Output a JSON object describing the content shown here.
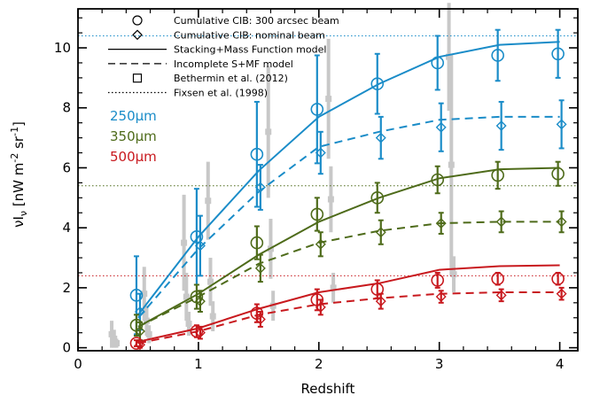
{
  "chart_data": {
    "type": "line",
    "title": "",
    "xlabel": "Redshift",
    "ylabel": "νI_ν [nW m^-2 sr^-1]",
    "xlim": [
      0,
      4.15
    ],
    "ylim": [
      -0.1,
      11.3
    ],
    "xticks": [
      0,
      1,
      2,
      3,
      4
    ],
    "yticks": [
      0,
      2,
      4,
      6,
      8,
      10
    ],
    "grid": false,
    "legend_position": "top-left",
    "legend": [
      {
        "label": "Cumulative CIB: 300 arcsec beam",
        "marker": "circle"
      },
      {
        "label": "Cumulative CIB: nominal beam",
        "marker": "diamond"
      },
      {
        "label": "Stacking+Mass Function model",
        "line": "solid"
      },
      {
        "label": "Incomplete S+MF model",
        "line": "dashed"
      },
      {
        "label": "Bethermin et al. (2012)",
        "marker": "square"
      },
      {
        "label": "Fixsen et al. (1998)",
        "line": "dotted"
      }
    ],
    "bands": [
      {
        "label": "250μm",
        "color": "#1a8cc8",
        "fixsen": 10.4,
        "model_x": [
          0.5,
          1.0,
          1.5,
          2.0,
          2.5,
          3.0,
          3.5,
          4.0
        ],
        "model_full": [
          1.1,
          3.7,
          5.9,
          7.7,
          8.8,
          9.7,
          10.1,
          10.2
        ],
        "model_incomplete": [
          1.0,
          3.3,
          5.2,
          6.7,
          7.2,
          7.6,
          7.7,
          7.7
        ],
        "circles": [
          {
            "x": 0.5,
            "y": 1.75,
            "err": 1.3
          },
          {
            "x": 1.0,
            "y": 3.7,
            "err": 1.6
          },
          {
            "x": 1.5,
            "y": 6.45,
            "err": 1.75
          },
          {
            "x": 2.0,
            "y": 7.95,
            "err": 1.8
          },
          {
            "x": 2.5,
            "y": 8.8,
            "err": 1.0
          },
          {
            "x": 3.0,
            "y": 9.5,
            "err": 0.9
          },
          {
            "x": 3.5,
            "y": 9.75,
            "err": 0.85
          },
          {
            "x": 4.0,
            "y": 9.8,
            "err": 0.8
          }
        ],
        "diamonds": [
          {
            "x": 0.5,
            "y": 1.2,
            "err": 0.6
          },
          {
            "x": 1.0,
            "y": 3.4,
            "err": 1.0
          },
          {
            "x": 1.5,
            "y": 5.35,
            "err": 0.75
          },
          {
            "x": 2.0,
            "y": 6.5,
            "err": 0.7
          },
          {
            "x": 2.5,
            "y": 7.0,
            "err": 0.7
          },
          {
            "x": 3.0,
            "y": 7.35,
            "err": 0.8
          },
          {
            "x": 3.5,
            "y": 7.4,
            "err": 0.8
          },
          {
            "x": 4.0,
            "y": 7.45,
            "err": 0.8
          }
        ]
      },
      {
        "label": "350μm",
        "color": "#4e6b1a",
        "fixsen": 5.4,
        "model_x": [
          0.5,
          1.0,
          1.5,
          2.0,
          2.5,
          3.0,
          3.5,
          4.0
        ],
        "model_full": [
          0.7,
          1.8,
          3.1,
          4.2,
          5.0,
          5.65,
          5.95,
          6.0
        ],
        "model_incomplete": [
          0.7,
          1.7,
          2.8,
          3.5,
          3.9,
          4.15,
          4.2,
          4.2
        ],
        "circles": [
          {
            "x": 0.5,
            "y": 0.75,
            "err": 0.35
          },
          {
            "x": 1.0,
            "y": 1.7,
            "err": 0.4
          },
          {
            "x": 1.5,
            "y": 3.5,
            "err": 0.55
          },
          {
            "x": 2.0,
            "y": 4.45,
            "err": 0.55
          },
          {
            "x": 2.5,
            "y": 5.0,
            "err": 0.5
          },
          {
            "x": 3.0,
            "y": 5.6,
            "err": 0.45
          },
          {
            "x": 3.5,
            "y": 5.75,
            "err": 0.45
          },
          {
            "x": 4.0,
            "y": 5.8,
            "err": 0.4
          }
        ],
        "diamonds": [
          {
            "x": 0.5,
            "y": 0.55,
            "err": 0.3
          },
          {
            "x": 1.0,
            "y": 1.55,
            "err": 0.35
          },
          {
            "x": 1.5,
            "y": 2.65,
            "err": 0.45
          },
          {
            "x": 2.0,
            "y": 3.45,
            "err": 0.4
          },
          {
            "x": 2.5,
            "y": 3.85,
            "err": 0.4
          },
          {
            "x": 3.0,
            "y": 4.15,
            "err": 0.35
          },
          {
            "x": 3.5,
            "y": 4.2,
            "err": 0.35
          },
          {
            "x": 4.0,
            "y": 4.2,
            "err": 0.35
          }
        ]
      },
      {
        "label": "500μm",
        "color": "#c8191e",
        "fixsen": 2.4,
        "model_x": [
          0.5,
          1.0,
          1.5,
          2.0,
          2.5,
          3.0,
          3.5,
          4.0
        ],
        "model_full": [
          0.2,
          0.65,
          1.3,
          1.85,
          2.15,
          2.6,
          2.72,
          2.75
        ],
        "model_incomplete": [
          0.15,
          0.55,
          1.1,
          1.45,
          1.65,
          1.8,
          1.85,
          1.85
        ],
        "circles": [
          {
            "x": 0.5,
            "y": 0.15,
            "err": 0.1
          },
          {
            "x": 1.0,
            "y": 0.55,
            "err": 0.2
          },
          {
            "x": 1.5,
            "y": 1.15,
            "err": 0.3
          },
          {
            "x": 2.0,
            "y": 1.6,
            "err": 0.35
          },
          {
            "x": 2.5,
            "y": 1.95,
            "err": 0.3
          },
          {
            "x": 3.0,
            "y": 2.25,
            "err": 0.25
          },
          {
            "x": 3.5,
            "y": 2.3,
            "err": 0.2
          },
          {
            "x": 4.0,
            "y": 2.3,
            "err": 0.2
          }
        ],
        "diamonds": [
          {
            "x": 0.5,
            "y": 0.1,
            "err": 0.1
          },
          {
            "x": 1.0,
            "y": 0.5,
            "err": 0.2
          },
          {
            "x": 1.5,
            "y": 0.95,
            "err": 0.25
          },
          {
            "x": 2.0,
            "y": 1.35,
            "err": 0.25
          },
          {
            "x": 2.5,
            "y": 1.55,
            "err": 0.25
          },
          {
            "x": 3.0,
            "y": 1.7,
            "err": 0.2
          },
          {
            "x": 3.5,
            "y": 1.75,
            "err": 0.2
          },
          {
            "x": 4.0,
            "y": 1.8,
            "err": 0.2
          }
        ]
      }
    ],
    "bethermin": {
      "color": "#c8c8c8",
      "points": [
        {
          "x": 0.28,
          "y": 0.45,
          "err": 0.45
        },
        {
          "x": 0.3,
          "y": 0.3,
          "err": 0.3
        },
        {
          "x": 0.32,
          "y": 0.15,
          "err": 0.15
        },
        {
          "x": 0.55,
          "y": 1.8,
          "err": 0.9
        },
        {
          "x": 0.57,
          "y": 0.9,
          "err": 0.5
        },
        {
          "x": 0.59,
          "y": 0.45,
          "err": 0.3
        },
        {
          "x": 0.88,
          "y": 3.5,
          "err": 1.6
        },
        {
          "x": 0.9,
          "y": 1.7,
          "err": 0.8
        },
        {
          "x": 0.92,
          "y": 0.8,
          "err": 0.4
        },
        {
          "x": 1.08,
          "y": 4.9,
          "err": 1.3
        },
        {
          "x": 1.1,
          "y": 2.2,
          "err": 0.8
        },
        {
          "x": 1.12,
          "y": 1.05,
          "err": 0.5
        },
        {
          "x": 1.58,
          "y": 7.2,
          "err": 2.2
        },
        {
          "x": 1.6,
          "y": 3.3,
          "err": 1.0
        },
        {
          "x": 1.62,
          "y": 1.4,
          "err": 0.5
        },
        {
          "x": 2.08,
          "y": 8.3,
          "err": 2.0
        },
        {
          "x": 2.1,
          "y": 4.95,
          "err": 1.1
        },
        {
          "x": 2.12,
          "y": 2.0,
          "err": 0.5
        },
        {
          "x": 3.08,
          "y": 9.7,
          "err": 1.8
        },
        {
          "x": 3.1,
          "y": 6.1,
          "err": 3.7
        },
        {
          "x": 3.12,
          "y": 2.45,
          "err": 0.6
        }
      ]
    }
  }
}
